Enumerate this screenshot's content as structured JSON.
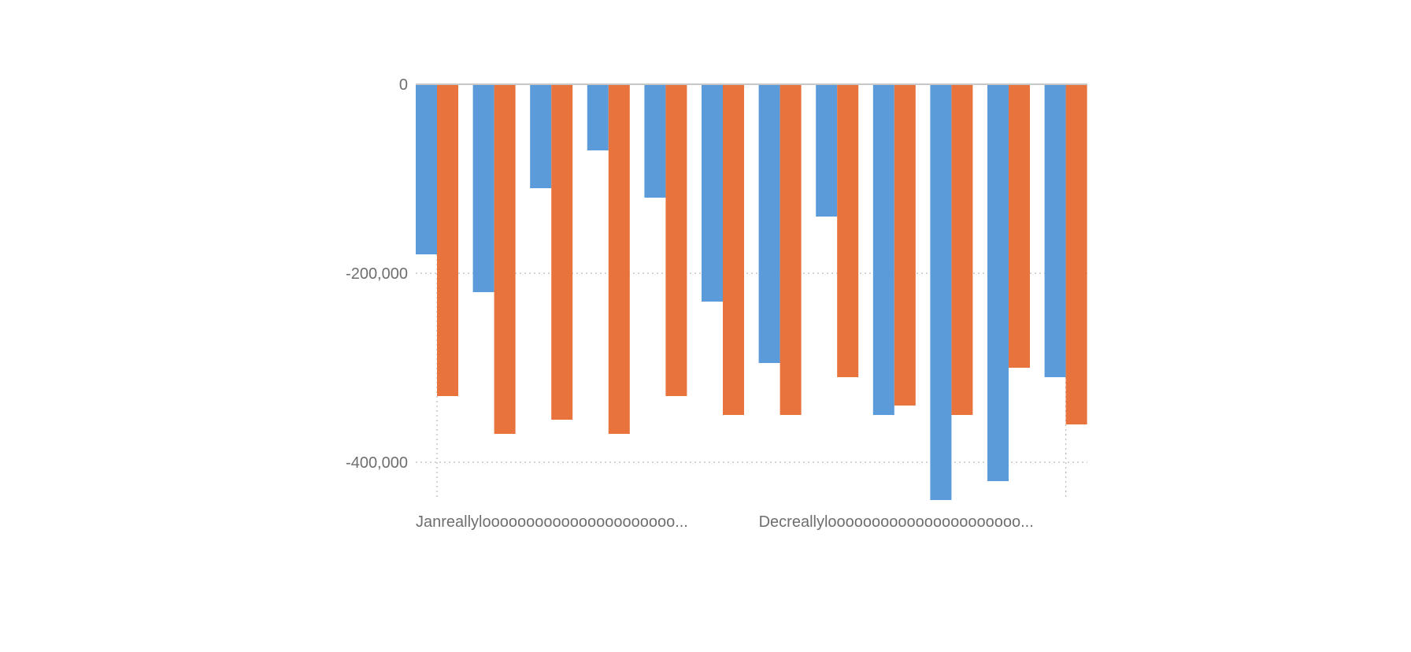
{
  "chart_data": {
    "type": "bar",
    "title": "",
    "xlabel": "",
    "ylabel": "",
    "ylim": [
      -440000,
      0
    ],
    "yticks": [
      0,
      -200000,
      -400000
    ],
    "ytick_labels": [
      "0",
      "-200,000",
      "-400,000"
    ],
    "grid": true,
    "legend": "none",
    "categories": [
      "",
      "",
      "",
      "",
      "",
      "",
      "",
      "",
      "",
      "",
      "",
      ""
    ],
    "x_labels_visible": [
      {
        "category_index": 0,
        "label": "Janreallyloooooooooooooooooooooo..."
      },
      {
        "category_index": 6,
        "label": "Decreallyloooooooooooooooooooooo..."
      }
    ],
    "series": [
      {
        "color": "#5b9bd9",
        "values": [
          -180000,
          -220000,
          -110000,
          -70000,
          -120000,
          -230000,
          -295000,
          -140000,
          -350000,
          -440000,
          -420000,
          -310000
        ]
      },
      {
        "color": "#e8733c",
        "values": [
          -330000,
          -370000,
          -355000,
          -370000,
          -330000,
          -350000,
          -350000,
          -310000,
          -340000,
          -350000,
          -300000,
          -360000
        ]
      }
    ]
  }
}
